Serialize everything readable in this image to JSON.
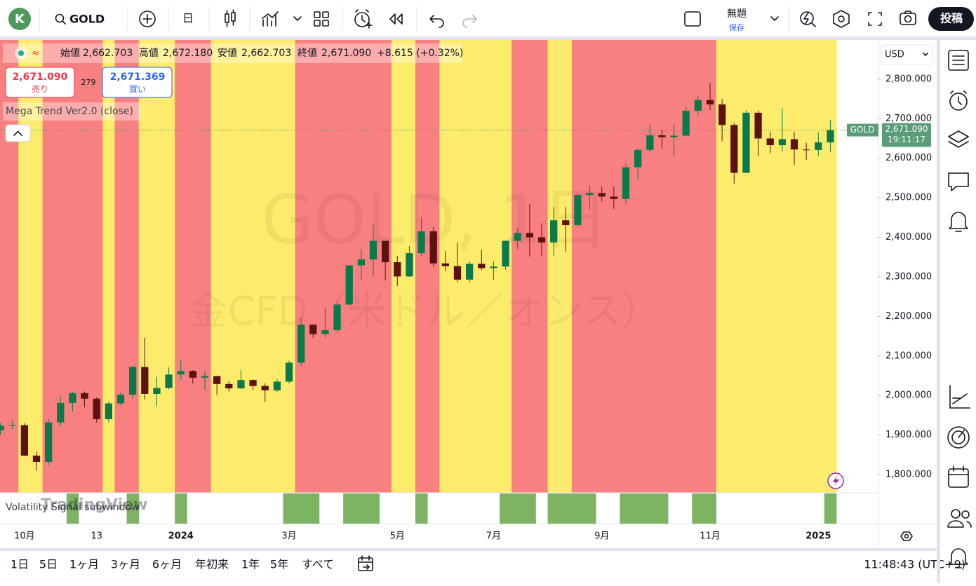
{
  "ui": {
    "avatar": "K",
    "symbol": "GOLD",
    "interval": "日",
    "layout_name": "無題",
    "save": "保存",
    "publish": "投稿",
    "legend": {
      "open_label": "始値",
      "open": "2,662.703",
      "high_label": "高値",
      "high": "2,672.180",
      "low_label": "安値",
      "low": "2,662.703",
      "close_label": "終値",
      "close": "2,671.090",
      "change": "+8.615 (+0.32%)"
    },
    "sell_price": "2,671.090",
    "sell": "売り",
    "spread": "279",
    "buy_price": "2,671.369",
    "buy": "買い",
    "indicator": "Mega Trend Ver2.0 (close)",
    "watermark_title": "GOLD, 1日",
    "watermark_subtitle": "金CFD（米ドル／オンス）",
    "currency": "USD",
    "price_tag_symbol": "GOLD",
    "countdown": "19:11:17",
    "subwindow": "Volatility Signal subwindow",
    "logo": "TradingView",
    "ranges": [
      "1日",
      "5日",
      "1ヶ月",
      "3ヶ月",
      "6ヶ月",
      "年初来",
      "1年",
      "5年",
      "すべて"
    ],
    "clock": "11:48:43 (UTC+9)"
  },
  "chart_data": {
    "type": "candlestick",
    "categories": [
      null,
      null,
      "10月",
      null,
      null,
      null,
      null,
      null,
      "13",
      null,
      null,
      null,
      null,
      null,
      null,
      "2024",
      null,
      null,
      null,
      null,
      null,
      null,
      null,
      null,
      "3月",
      null,
      null,
      null,
      null,
      null,
      null,
      null,
      null,
      "5月",
      null,
      null,
      null,
      null,
      null,
      null,
      null,
      "7月",
      null,
      null,
      null,
      null,
      null,
      null,
      null,
      null,
      "9月",
      null,
      null,
      null,
      null,
      null,
      null,
      null,
      null,
      "11月",
      null,
      null,
      null,
      null,
      null,
      null,
      null,
      null,
      "2025",
      null
    ],
    "open": [
      1912,
      1924,
      1925,
      1848,
      1832,
      1932,
      1981,
      2006,
      1992,
      1940,
      1980,
      2002,
      2072,
      2004,
      2019,
      2053,
      2062,
      2045,
      2049,
      2029,
      2018,
      2039,
      2024,
      2013,
      2035,
      2083,
      2179,
      2155,
      2165,
      2230,
      2329,
      2344,
      2391,
      2337,
      2301,
      2360,
      2415,
      2334,
      2327,
      2293,
      2333,
      2322,
      2326,
      2391,
      2411,
      2400,
      2387,
      2443,
      2431,
      2507,
      2512,
      2503,
      2497,
      2577,
      2621,
      2658,
      2653,
      2657,
      2720,
      2747,
      2736,
      2684,
      2563,
      2715,
      2650,
      2633,
      2648,
      2622,
      2621,
      2640
    ],
    "high": [
      1931,
      1937,
      1930,
      1858,
      1940,
      1997,
      2009,
      2010,
      1995,
      1985,
      2008,
      2075,
      2146,
      2047,
      2071,
      2088,
      2064,
      2062,
      2050,
      2036,
      2065,
      2041,
      2031,
      2041,
      2088,
      2195,
      2180,
      2222,
      2236,
      2330,
      2370,
      2431,
      2390,
      2353,
      2378,
      2450,
      2425,
      2365,
      2387,
      2339,
      2368,
      2339,
      2392,
      2424,
      2484,
      2436,
      2477,
      2477,
      2509,
      2531,
      2528,
      2529,
      2586,
      2625,
      2685,
      2672,
      2685,
      2730,
      2758,
      2790,
      2750,
      2690,
      2721,
      2721,
      2666,
      2726,
      2666,
      2639,
      2665,
      2697
    ],
    "low": [
      1901,
      1914,
      1846,
      1810,
      1823,
      1922,
      1960,
      1970,
      1932,
      1932,
      1975,
      1992,
      1990,
      1973,
      2016,
      2040,
      2030,
      2013,
      2001,
      2010,
      2016,
      2014,
      1984,
      2008,
      2030,
      2074,
      2146,
      2146,
      2159,
      2228,
      2290,
      2300,
      2291,
      2277,
      2300,
      2353,
      2325,
      2314,
      2287,
      2286,
      2317,
      2293,
      2318,
      2370,
      2351,
      2353,
      2353,
      2364,
      2427,
      2470,
      2490,
      2472,
      2485,
      2546,
      2615,
      2624,
      2604,
      2656,
      2708,
      2722,
      2643,
      2536,
      2563,
      2605,
      2613,
      2617,
      2583,
      2596,
      2605,
      2615
    ],
    "close": [
      1924,
      1925,
      1848,
      1832,
      1932,
      1981,
      2006,
      1992,
      1940,
      1980,
      2002,
      2072,
      2004,
      2019,
      2053,
      2062,
      2045,
      2049,
      2029,
      2018,
      2039,
      2024,
      2013,
      2035,
      2083,
      2179,
      2155,
      2165,
      2230,
      2329,
      2344,
      2391,
      2337,
      2301,
      2360,
      2415,
      2334,
      2327,
      2293,
      2333,
      2322,
      2326,
      2391,
      2411,
      2400,
      2387,
      2443,
      2431,
      2507,
      2512,
      2503,
      2497,
      2577,
      2621,
      2658,
      2653,
      2657,
      2720,
      2747,
      2736,
      2684,
      2563,
      2715,
      2650,
      2633,
      2648,
      2622,
      2621,
      2640,
      2671
    ],
    "up_color": "#0b7a4b",
    "down_color": "#5c1212",
    "background": [
      "red",
      "red",
      "yellow",
      "yellow",
      "red",
      "red",
      "red",
      "red",
      "red",
      "yellow",
      "red",
      "red",
      "yellow",
      "yellow",
      "yellow",
      "red",
      "red",
      "red",
      "yellow",
      "yellow",
      "yellow",
      "yellow",
      "yellow",
      "yellow",
      "yellow",
      "red",
      "red",
      "red",
      "red",
      "red",
      "red",
      "red",
      "red",
      "yellow",
      "yellow",
      "red",
      "red",
      "yellow",
      "yellow",
      "yellow",
      "yellow",
      "yellow",
      "yellow",
      "red",
      "red",
      "red",
      "yellow",
      "yellow",
      "red",
      "red",
      "red",
      "red",
      "red",
      "red",
      "red",
      "red",
      "red",
      "red",
      "red",
      "red",
      "yellow",
      "yellow",
      "yellow",
      "yellow",
      "yellow",
      "yellow",
      "yellow",
      "yellow",
      "yellow",
      "yellow"
    ],
    "background_colors": {
      "red": "#f98080",
      "yellow": "#fdeb6c"
    },
    "signal": [
      false,
      false,
      false,
      false,
      false,
      false,
      true,
      false,
      false,
      false,
      false,
      true,
      false,
      false,
      false,
      true,
      false,
      false,
      false,
      false,
      false,
      false,
      false,
      false,
      true,
      true,
      true,
      false,
      false,
      true,
      true,
      true,
      false,
      false,
      false,
      true,
      false,
      false,
      false,
      false,
      false,
      false,
      true,
      true,
      true,
      false,
      true,
      true,
      true,
      true,
      false,
      false,
      true,
      true,
      true,
      true,
      false,
      false,
      true,
      true,
      false,
      false,
      false,
      false,
      false,
      false,
      false,
      false,
      false,
      true
    ],
    "signal_color": "#7cb463",
    "ylim": [
      1754,
      2899
    ],
    "yticks": [
      {
        "value": 2800,
        "label": "2,800.000"
      },
      {
        "value": 2700,
        "label": "2,700.000"
      },
      {
        "value": 2600,
        "label": "2,600.000"
      },
      {
        "value": 2500,
        "label": "2,500.000"
      },
      {
        "value": 2400,
        "label": "2,400.000"
      },
      {
        "value": 2300,
        "label": "2,300.000"
      },
      {
        "value": 2200,
        "label": "2,200.000"
      },
      {
        "value": 2100,
        "label": "2,100.000"
      },
      {
        "value": 2000,
        "label": "2,000.000"
      },
      {
        "value": 1900,
        "label": "1,900.000"
      },
      {
        "value": 1800,
        "label": "1,800.000"
      }
    ],
    "last_price": {
      "value": 2671.09,
      "label": "2,671.090"
    }
  }
}
